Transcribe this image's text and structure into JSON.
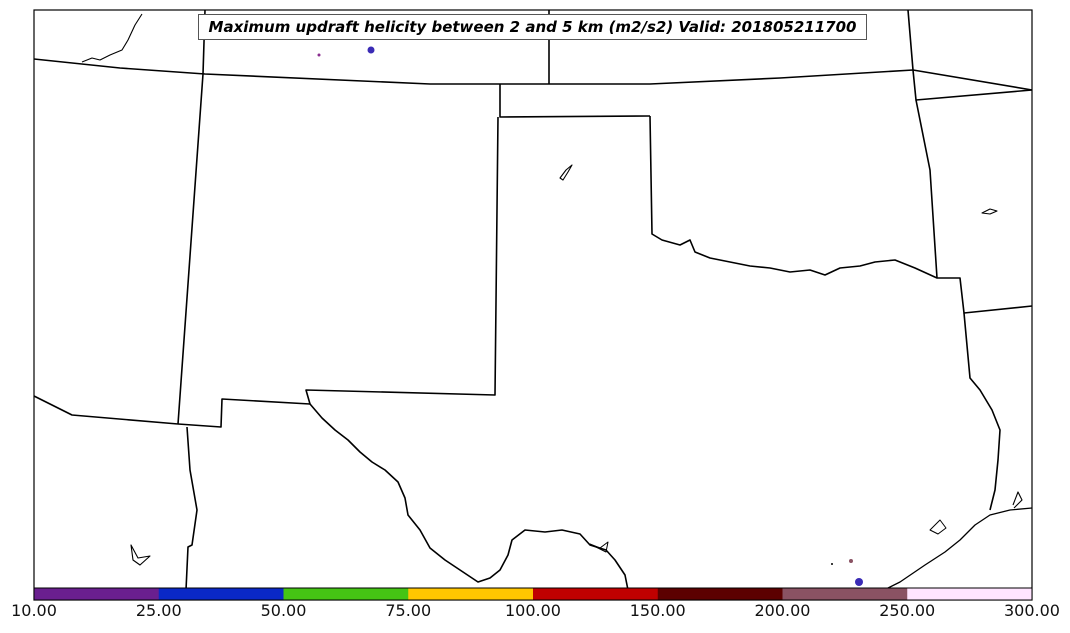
{
  "map": {
    "title": "Maximum updraft helicity between 2 and 5 km (m2/s2) Valid: 201805211700",
    "region": "Southern Plains (TX, OK, NM, KS, CO, AR, LA)",
    "colors": {
      "background": "#ffffff",
      "boundaries": "#000000"
    }
  },
  "colorbar": {
    "tick_labels": [
      "10.00",
      "25.00",
      "50.00",
      "75.00",
      "100.00",
      "150.00",
      "200.00",
      "250.00",
      "300.00"
    ],
    "bins": [
      {
        "min": 10,
        "max": 25,
        "color": "#6a1f8f"
      },
      {
        "min": 25,
        "max": 50,
        "color": "#0a28c6"
      },
      {
        "min": 50,
        "max": 75,
        "color": "#45c414"
      },
      {
        "min": 75,
        "max": 100,
        "color": "#ffc600"
      },
      {
        "min": 100,
        "max": 150,
        "color": "#c00000"
      },
      {
        "min": 150,
        "max": 200,
        "color": "#5c0000"
      },
      {
        "min": 200,
        "max": 250,
        "color": "#8a5263"
      },
      {
        "min": 250,
        "max": 300,
        "color": "#ffe4ff"
      }
    ]
  }
}
